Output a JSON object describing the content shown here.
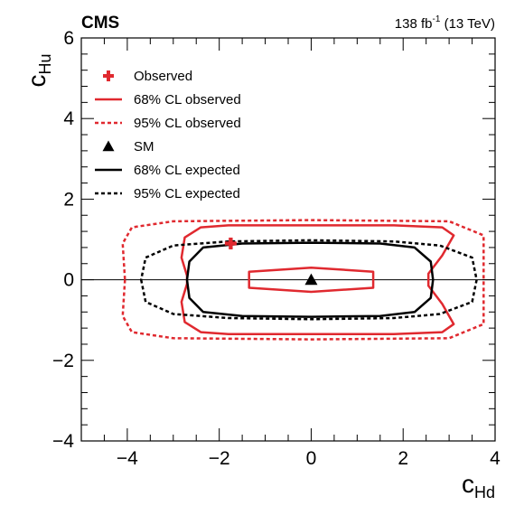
{
  "chart_data": {
    "type": "contour",
    "experiment_label": "CMS",
    "luminosity_label": "138 fb",
    "luminosity_sup": "-1",
    "energy_label": " (13 TeV)",
    "xlabel_main": "c",
    "xlabel_sub": "Hd",
    "ylabel_main": "c",
    "ylabel_sub": "Hu",
    "xlim": [
      -5,
      4
    ],
    "ylim": [
      -4,
      6
    ],
    "x_ticks": [
      -4,
      -2,
      0,
      2,
      4
    ],
    "x_tick_labels": [
      "−4",
      "−2",
      "0",
      "2",
      "4"
    ],
    "y_ticks": [
      -4,
      -2,
      0,
      2,
      4,
      6
    ],
    "y_tick_labels": [
      "−4",
      "−2",
      "0",
      "2",
      "4",
      "6"
    ],
    "reference_line_y": 0,
    "points": [
      {
        "name": "observed-best-fit",
        "label": "Observed",
        "marker": "cross",
        "color": "#e0292f",
        "x": -1.75,
        "y": 0.9
      },
      {
        "name": "sm-point",
        "label": "SM",
        "marker": "triangle",
        "color": "#000000",
        "x": 0.0,
        "y": 0.0
      }
    ],
    "contours": [
      {
        "name": "obs68-outer",
        "label": "68% CL observed",
        "color": "#e0292f",
        "dash": "solid",
        "legend": true,
        "points": [
          [
            -2.7,
            -0.1
          ],
          [
            -2.82,
            -0.55
          ],
          [
            -2.75,
            -1.05
          ],
          [
            -2.4,
            -1.3
          ],
          [
            -1.8,
            -1.35
          ],
          [
            0,
            -1.35
          ],
          [
            1.8,
            -1.35
          ],
          [
            2.85,
            -1.3
          ],
          [
            3.1,
            -1.1
          ],
          [
            2.85,
            -0.6
          ],
          [
            2.55,
            -0.15
          ],
          [
            2.55,
            0.15
          ],
          [
            2.85,
            0.6
          ],
          [
            3.1,
            1.1
          ],
          [
            2.85,
            1.3
          ],
          [
            1.8,
            1.35
          ],
          [
            0,
            1.35
          ],
          [
            -1.8,
            1.35
          ],
          [
            -2.4,
            1.3
          ],
          [
            -2.75,
            1.05
          ],
          [
            -2.82,
            0.55
          ],
          [
            -2.7,
            0.1
          ],
          [
            -2.7,
            -0.1
          ]
        ]
      },
      {
        "name": "obs68-inner",
        "label": "68% CL observed",
        "color": "#e0292f",
        "dash": "solid",
        "legend": false,
        "points": [
          [
            -1.35,
            0.0
          ],
          [
            -1.35,
            -0.2
          ],
          [
            0,
            -0.3
          ],
          [
            1.35,
            -0.2
          ],
          [
            1.35,
            0.2
          ],
          [
            0,
            0.3
          ],
          [
            -1.35,
            0.2
          ],
          [
            -1.35,
            0.0
          ]
        ]
      },
      {
        "name": "obs95",
        "label": "95% CL observed",
        "color": "#e0292f",
        "dash": "dotted",
        "legend": true,
        "points": [
          [
            -4.05,
            0
          ],
          [
            -4.1,
            -0.9
          ],
          [
            -3.9,
            -1.3
          ],
          [
            -3.0,
            -1.45
          ],
          [
            0,
            -1.48
          ],
          [
            3.0,
            -1.45
          ],
          [
            3.75,
            -1.1
          ],
          [
            3.75,
            1.1
          ],
          [
            3.0,
            1.45
          ],
          [
            0,
            1.48
          ],
          [
            -3.0,
            1.45
          ],
          [
            -3.9,
            1.3
          ],
          [
            -4.1,
            0.9
          ],
          [
            -4.05,
            0
          ]
        ]
      },
      {
        "name": "exp68",
        "label": "68% CL expected",
        "color": "#000000",
        "dash": "solid",
        "legend": true,
        "points": [
          [
            -2.7,
            0
          ],
          [
            -2.65,
            -0.45
          ],
          [
            -2.35,
            -0.8
          ],
          [
            -1.5,
            -0.9
          ],
          [
            0,
            -0.92
          ],
          [
            1.5,
            -0.9
          ],
          [
            2.25,
            -0.8
          ],
          [
            2.6,
            -0.45
          ],
          [
            2.65,
            0
          ],
          [
            2.6,
            0.45
          ],
          [
            2.25,
            0.8
          ],
          [
            1.5,
            0.9
          ],
          [
            0,
            0.92
          ],
          [
            -1.5,
            0.9
          ],
          [
            -2.35,
            0.8
          ],
          [
            -2.65,
            0.45
          ],
          [
            -2.7,
            0
          ]
        ]
      },
      {
        "name": "exp95",
        "label": "95% CL expected",
        "color": "#000000",
        "dash": "dotted",
        "legend": true,
        "points": [
          [
            -3.7,
            0
          ],
          [
            -3.6,
            -0.55
          ],
          [
            -3.0,
            -0.85
          ],
          [
            -1.8,
            -0.95
          ],
          [
            0,
            -0.98
          ],
          [
            1.8,
            -0.95
          ],
          [
            2.8,
            -0.85
          ],
          [
            3.5,
            -0.55
          ],
          [
            3.6,
            0
          ],
          [
            3.5,
            0.55
          ],
          [
            2.8,
            0.85
          ],
          [
            1.8,
            0.95
          ],
          [
            0,
            0.98
          ],
          [
            -1.8,
            0.95
          ],
          [
            -3.0,
            0.85
          ],
          [
            -3.6,
            0.55
          ],
          [
            -3.7,
            0
          ]
        ]
      }
    ],
    "legend": [
      {
        "label": "Observed",
        "kind": "cross",
        "color": "#e0292f"
      },
      {
        "label": "68% CL observed",
        "kind": "line-solid",
        "color": "#e0292f"
      },
      {
        "label": "95% CL observed",
        "kind": "line-dotted",
        "color": "#e0292f"
      },
      {
        "label": "SM",
        "kind": "triangle",
        "color": "#000000"
      },
      {
        "label": "68% CL expected",
        "kind": "line-solid",
        "color": "#000000"
      },
      {
        "label": "95% CL expected",
        "kind": "line-dotted",
        "color": "#000000"
      }
    ],
    "legend_position": "top-left",
    "grid": false
  }
}
